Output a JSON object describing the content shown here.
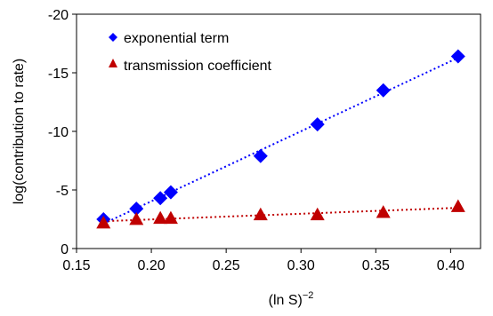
{
  "chart_data": {
    "type": "scatter",
    "xlabel_base": "(ln S)",
    "xlabel_sup": "−2",
    "ylabel": "log(contribution to rate)",
    "xlim": [
      0.15,
      0.42
    ],
    "ylim": [
      0,
      -20
    ],
    "y_axis_inverted": true,
    "xticks": [
      0.15,
      0.2,
      0.25,
      0.3,
      0.35,
      0.4
    ],
    "xtick_labels": [
      "0.15",
      "0.20",
      "0.25",
      "0.30",
      "0.35",
      "0.40"
    ],
    "yticks": [
      0,
      -5,
      -10,
      -15,
      -20
    ],
    "ytick_labels": [
      "0",
      "-5",
      "-10",
      "-15",
      "-20"
    ],
    "grid": false,
    "legend_position": "top-left",
    "series": [
      {
        "name": "exponential term",
        "marker": "diamond",
        "color": "#0000ff",
        "trendline": "linear-dotted",
        "x": [
          0.168,
          0.19,
          0.206,
          0.213,
          0.273,
          0.311,
          0.355,
          0.405
        ],
        "y": [
          -2.5,
          -3.4,
          -4.3,
          -4.8,
          -7.9,
          -10.6,
          -13.5,
          -16.4
        ]
      },
      {
        "name": "transmission coefficient",
        "marker": "triangle",
        "color": "#c00000",
        "trendline": "linear-dotted",
        "x": [
          0.168,
          0.19,
          0.206,
          0.213,
          0.273,
          0.311,
          0.355,
          0.405
        ],
        "y": [
          -2.2,
          -2.5,
          -2.6,
          -2.6,
          -2.9,
          -2.9,
          -3.1,
          -3.6
        ]
      }
    ]
  }
}
